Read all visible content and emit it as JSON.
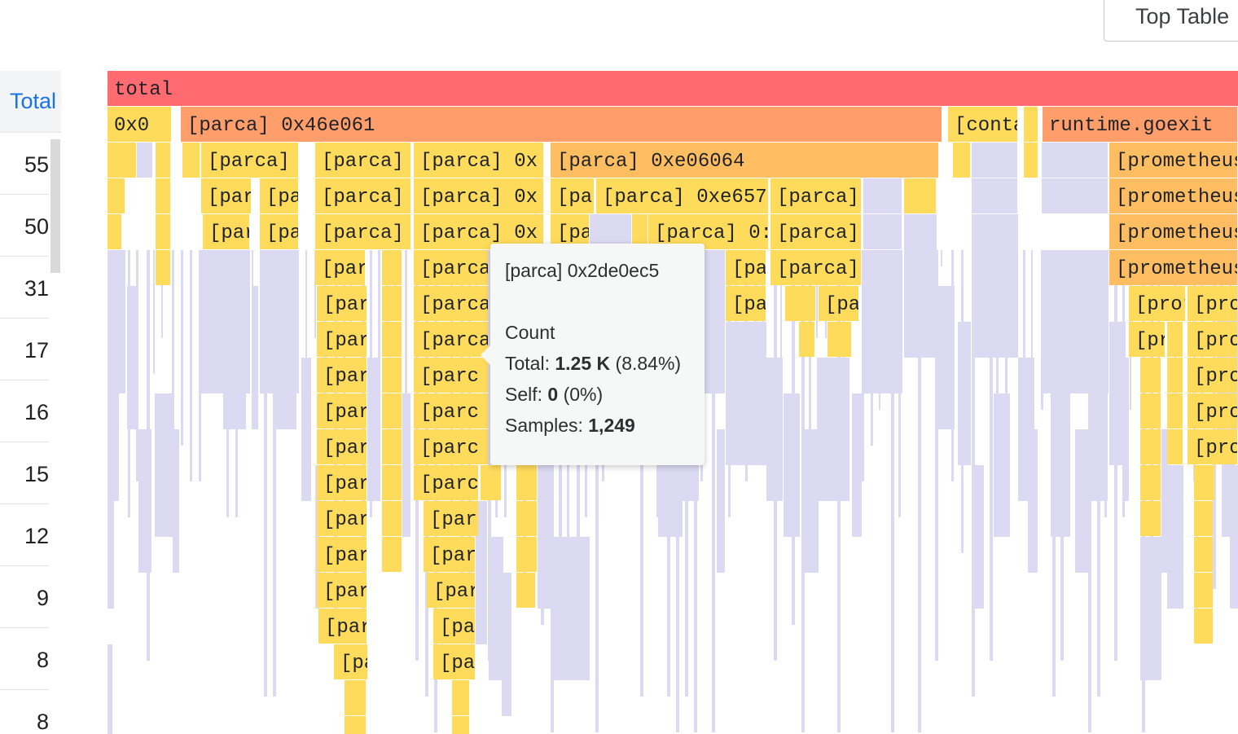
{
  "toolbar": {
    "top_table_label": "Top Table"
  },
  "table": {
    "header": "Total",
    "rows": [
      "55",
      "50",
      "31",
      "17",
      "16",
      "15",
      "12",
      "9",
      "8",
      "8"
    ]
  },
  "flamegraph": {
    "root_label": "total",
    "colors": {
      "root": "#ff6b70",
      "level1": "#ff9e6b",
      "level2": "#ffbd62",
      "yellow": "#ffdb5c",
      "lavender": "#dcd9f2"
    },
    "frames": [
      "0x0",
      "[parca] 0x46e061",
      "[conta",
      "runtime.goexit",
      "[parca]",
      "[parca]",
      "[parca] 0x",
      "[parca] 0xe06064",
      "[prometheus",
      "[par",
      "[pa",
      "[parca]",
      "[parca] 0x",
      "[pa",
      "[parca] 0xe657",
      "[parca]",
      "[prometheus",
      "[par",
      "[pa",
      "[parca]",
      "[parca] 0x",
      "[pa",
      "[parca] 0:",
      "[parca]",
      "[prometheus",
      "[par",
      "[parca",
      "[pa",
      "[parca]",
      "[prometheus",
      "[par",
      "[parca",
      "[pa",
      "[pa",
      "[pror",
      "[pro",
      "[par",
      "[parca",
      "[pr",
      "[pro",
      "[par",
      "[parc",
      "[pro",
      "[par",
      "[parc",
      "[pro",
      "[par",
      "[parc",
      "[pro",
      "[par",
      "[parc",
      "[par",
      "[par",
      "[par",
      "[par",
      "[par",
      "[par",
      "[par",
      "[pa",
      "[pa",
      "[pa"
    ]
  },
  "tooltip": {
    "name": "[parca] 0x2de0ec5",
    "section": "Count",
    "total_label": "Total: ",
    "total_value": "1.25 K",
    "total_pct": " (8.84%)",
    "self_label": "Self: ",
    "self_value": "0",
    "self_pct": " (0%)",
    "samples_label": "Samples: ",
    "samples_value": "1,249"
  }
}
